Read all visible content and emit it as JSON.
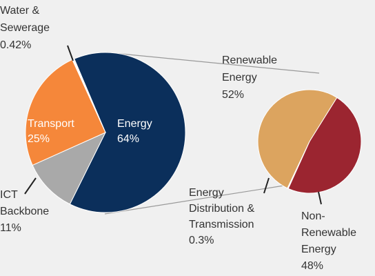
{
  "chart_data": [
    {
      "type": "pie",
      "categories": [
        "Energy",
        "ICT Backbone",
        "Transport",
        "Water & Sewerage"
      ],
      "values": [
        64,
        11,
        25,
        0.42
      ],
      "value_labels": [
        "64%",
        "11%",
        "25%",
        "0.42%"
      ],
      "colors": [
        "#0b2f5b",
        "#a9a9a9",
        "#f5873a",
        "#ffffff"
      ]
    },
    {
      "type": "pie",
      "categories": [
        "Non-Renewable Energy",
        "Energy Distribution & Transmission",
        "Renewable Energy"
      ],
      "values": [
        48,
        0.3,
        52
      ],
      "value_labels": [
        "48%",
        "0.3%",
        "52%"
      ],
      "colors": [
        "#9b2530",
        "#ffffff",
        "#dca45f"
      ]
    }
  ]
}
